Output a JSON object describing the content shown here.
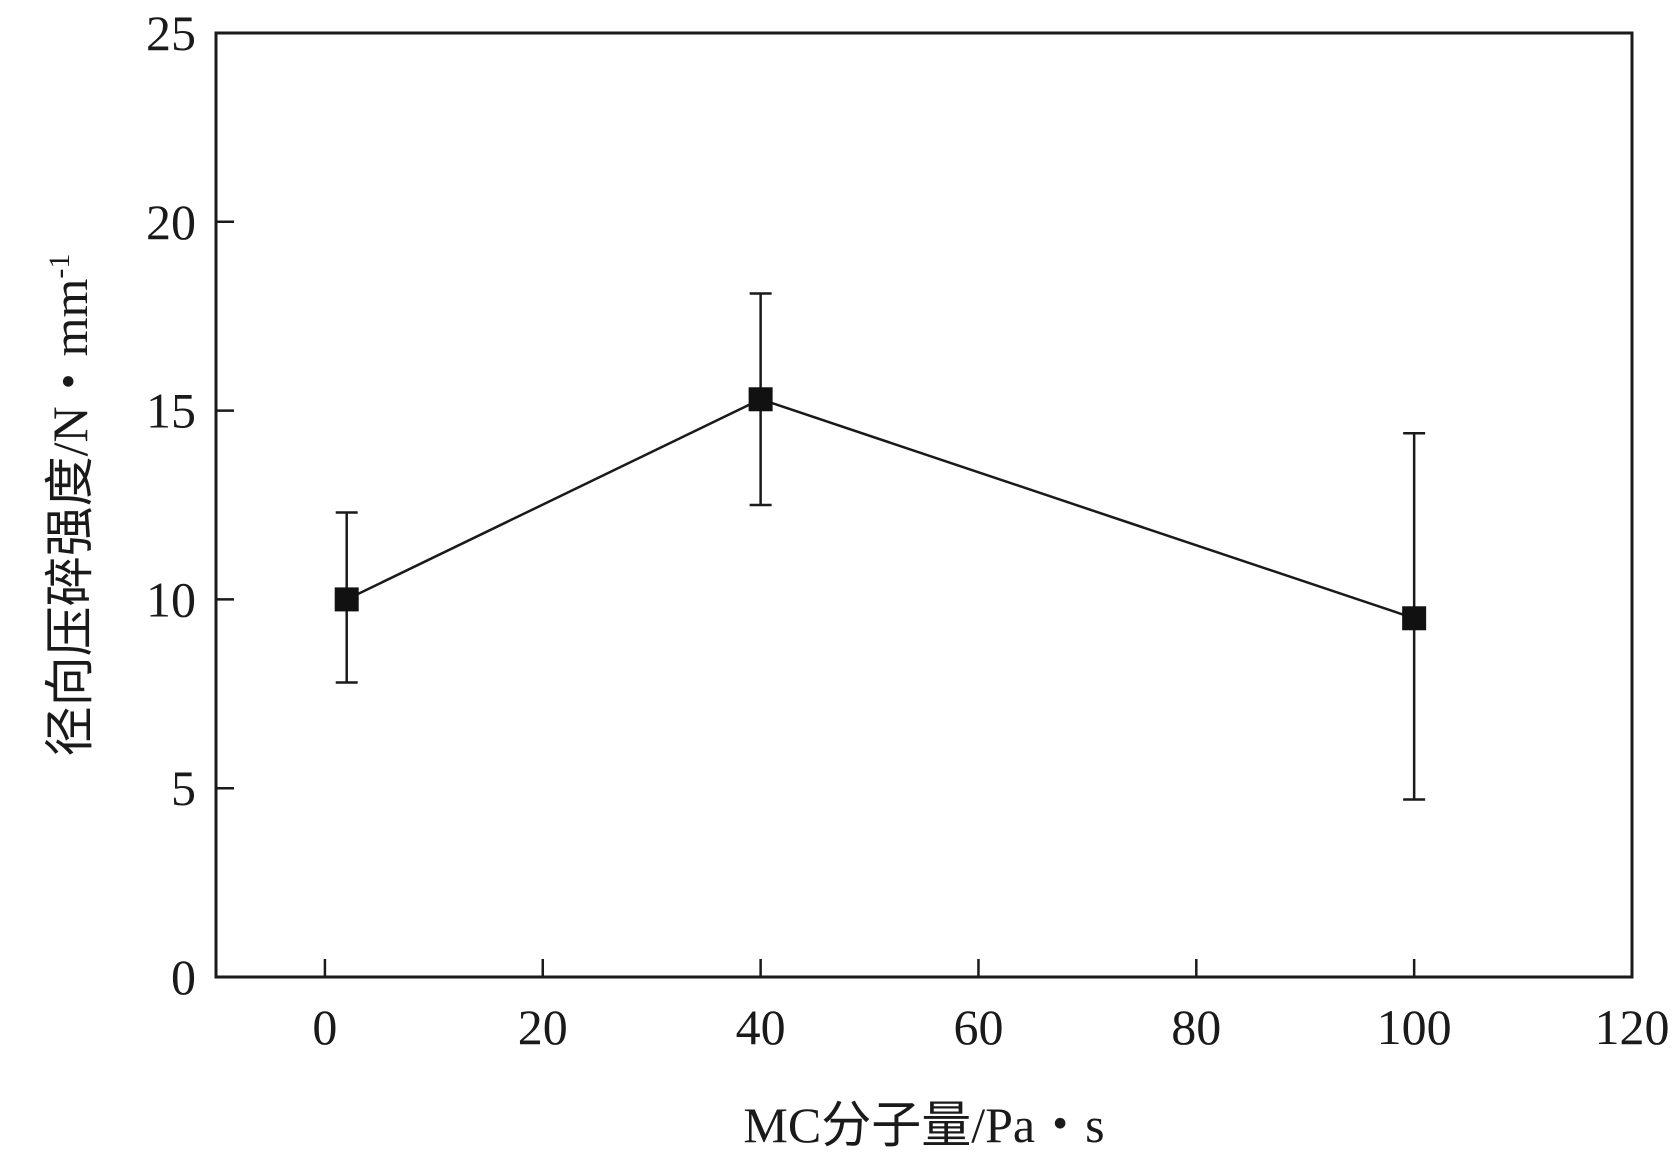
{
  "chart_data": {
    "type": "line",
    "title": "",
    "xlabel": "MC分子量/Pa・s",
    "ylabel": "径向压碎强度/N・mm",
    "ylabel_superscript": "-1",
    "xlim": [
      -10,
      120
    ],
    "ylim": [
      0,
      25
    ],
    "x_ticks": [
      0,
      20,
      40,
      60,
      80,
      100,
      120
    ],
    "y_ticks": [
      0,
      5,
      10,
      15,
      20,
      25
    ],
    "grid": false,
    "legend": "none",
    "series": [
      {
        "x": [
          2,
          40,
          100
        ],
        "y": [
          10.0,
          15.3,
          9.5
        ],
        "error_low": [
          7.8,
          12.5,
          4.7
        ],
        "error_high": [
          12.3,
          18.1,
          14.4
        ],
        "marker": "square",
        "color": "#111111"
      }
    ]
  }
}
